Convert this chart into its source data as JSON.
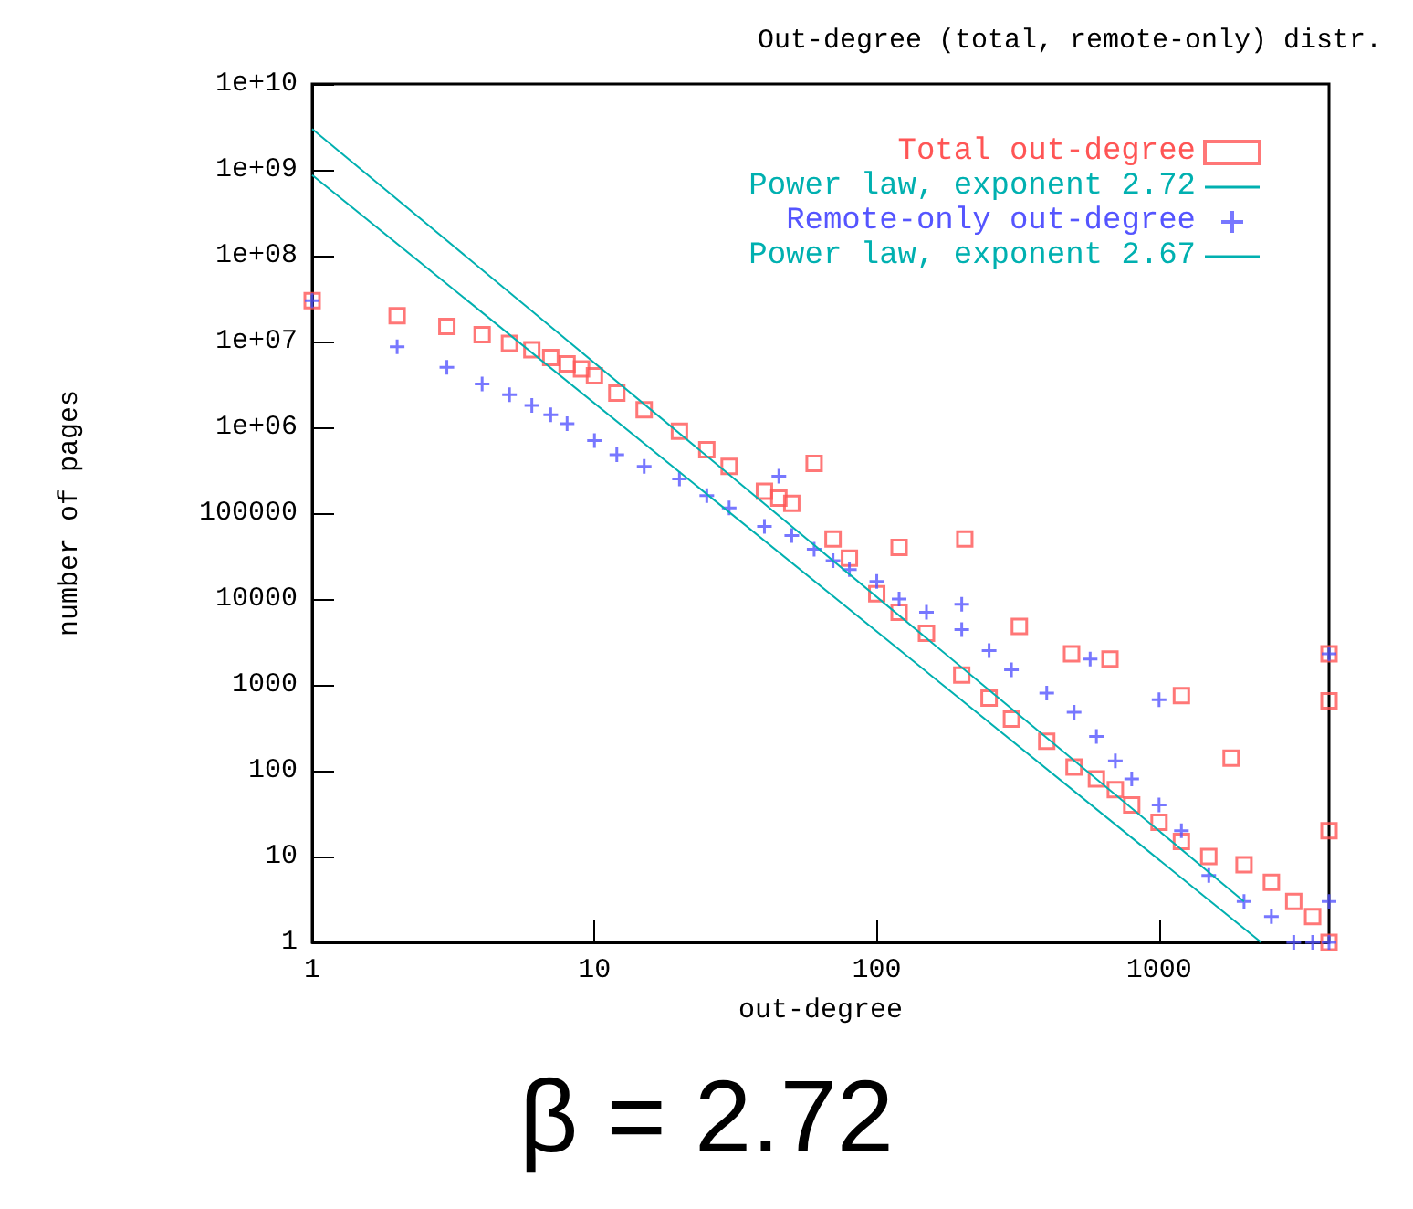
{
  "chart_data": {
    "type": "scatter",
    "title": "Out-degree (total, remote-only) distr.",
    "xlabel": "out-degree",
    "ylabel": "number of pages",
    "log": "xy",
    "grid": false,
    "legend": "top right",
    "xlim": [
      1,
      4000
    ],
    "xticks": [
      1,
      10,
      100,
      1000
    ],
    "ylim": [
      1,
      10000000000
    ],
    "yticks": [
      1,
      10,
      100,
      1000,
      10000,
      100000,
      {
        "value": 1000000,
        "label": "1e+06"
      },
      {
        "value": 10000000,
        "label": "1e+07"
      },
      {
        "value": 100000000,
        "label": "1e+08"
      },
      {
        "value": 1000000000,
        "label": "1e+09"
      },
      {
        "value": 10000000000,
        "label": "1e+10"
      }
    ],
    "annotations": [
      "β = 2.72"
    ],
    "series": [
      {
        "name": "Total out-degree",
        "marker": "square",
        "color": "#ff5555",
        "x": [
          1,
          2,
          3,
          4,
          5,
          6,
          7,
          8,
          9,
          10,
          12,
          15,
          20,
          25,
          30,
          40,
          45,
          50,
          60,
          70,
          80,
          100,
          120,
          120,
          150,
          200,
          205,
          250,
          300,
          320,
          400,
          490,
          500,
          600,
          670,
          700,
          800,
          1000,
          1200,
          1200,
          1500,
          1800,
          2000,
          2500,
          3000,
          3500,
          4000,
          4000,
          4000,
          4000
        ],
        "values": [
          30000000,
          20000000,
          15000000,
          12000000,
          9500000,
          8000000,
          6500000,
          5500000,
          4800000,
          4000000,
          2500000,
          1600000,
          900000,
          550000,
          350000,
          180000,
          150000,
          130000,
          380000,
          50000,
          30000,
          11500,
          7000,
          40000,
          4000,
          1300,
          50000,
          700,
          400,
          4800,
          220,
          2300,
          110,
          80,
          2000,
          60,
          40,
          25,
          750,
          15,
          10,
          140,
          8,
          5,
          3,
          2,
          2300,
          650,
          20,
          1
        ]
      },
      {
        "name": "Power law, exponent 2.72",
        "type": "line",
        "marker": "none",
        "color": "#00b0b0",
        "x": [
          1,
          2000
        ],
        "values": [
          3000000000,
          3
        ]
      },
      {
        "name": "Remote-only out-degree",
        "marker": "cross",
        "color": "#5555ff",
        "x": [
          1,
          2,
          3,
          4,
          5,
          6,
          7,
          8,
          10,
          12,
          15,
          20,
          25,
          30,
          40,
          45,
          50,
          60,
          70,
          80,
          100,
          120,
          150,
          200,
          200,
          250,
          300,
          400,
          500,
          570,
          600,
          700,
          800,
          1000,
          1000,
          1200,
          1500,
          2000,
          2500,
          3000,
          3500,
          4000,
          4000,
          4000
        ],
        "values": [
          30000000,
          8700000,
          5000000,
          3200000,
          2400000,
          1800000,
          1400000,
          1100000,
          700000,
          480000,
          350000,
          250000,
          160000,
          115000,
          70000,
          270000,
          55000,
          38000,
          28000,
          22000,
          16000,
          10000,
          7000,
          4400,
          8700,
          2500,
          1500,
          800,
          480,
          2000,
          250,
          130,
          80,
          40,
          670,
          20,
          6,
          3,
          2,
          1,
          1,
          2300,
          3,
          1
        ]
      },
      {
        "name": "Power law, exponent 2.67",
        "type": "line",
        "marker": "none",
        "color": "#00b0b0",
        "x": [
          1,
          2300
        ],
        "values": [
          870000000,
          1
        ]
      }
    ]
  }
}
